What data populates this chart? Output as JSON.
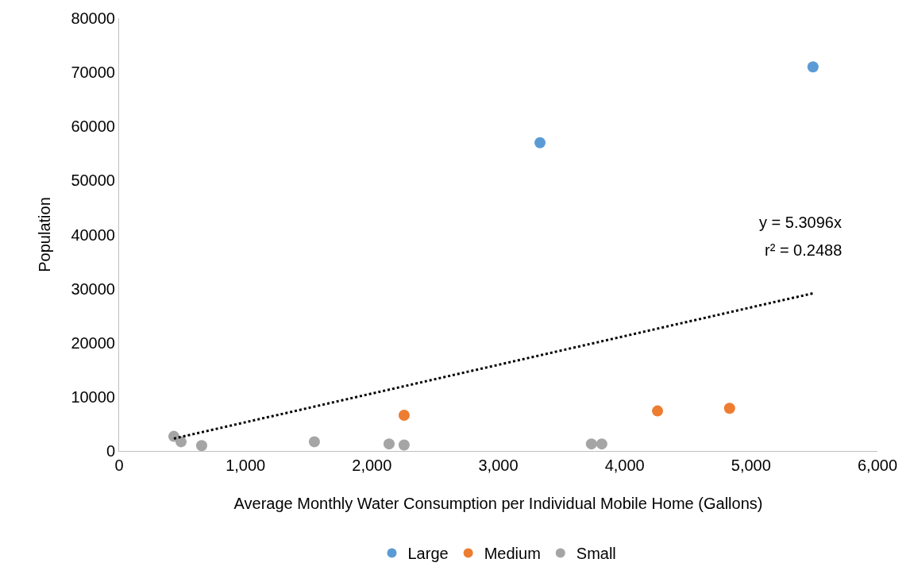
{
  "chart_data": {
    "type": "scatter",
    "xlabel": "Average Monthly Water Consumption per Individual Mobile Home (Gallons)",
    "ylabel": "Population",
    "xlim": [
      0,
      6000
    ],
    "xticks": [
      0,
      {
        "value": 1000,
        "label": "1,000"
      },
      {
        "value": 2000,
        "label": "2,000"
      },
      {
        "value": 3000,
        "label": "3,000"
      },
      {
        "value": 4000,
        "label": "4,000"
      },
      {
        "value": 5000,
        "label": "5,000"
      },
      {
        "value": 6000,
        "label": "6,000"
      }
    ],
    "ylim": [
      0,
      80000
    ],
    "yticks": [
      0,
      10000,
      20000,
      30000,
      40000,
      50000,
      60000,
      70000,
      80000
    ],
    "grid": false,
    "legend": "bottom",
    "marker": "circle",
    "series": [
      {
        "name": "Large",
        "color": "#5b9bd5",
        "x": [
          3330,
          5490
        ],
        "values": [
          57000,
          71000
        ]
      },
      {
        "name": "Medium",
        "color": "#ed7d31",
        "x": [
          2255,
          4260,
          4830
        ],
        "values": [
          6600,
          7400,
          7900
        ]
      },
      {
        "name": "Small",
        "color": "#a5a5a5",
        "x": [
          433,
          490,
          653,
          1545,
          2136,
          2255,
          3737,
          3819
        ],
        "values": [
          2700,
          1700,
          1000,
          1700,
          1300,
          1100,
          1300,
          1300
        ]
      },
      {
        "type": "line",
        "color": "#000000",
        "line_style": "dotted",
        "marker": "none",
        "x": [
          433,
          5490
        ],
        "values": [
          2299,
          29150
        ]
      }
    ],
    "annotations": [
      "y = 5.3096x",
      "r² = 0.2488"
    ]
  }
}
